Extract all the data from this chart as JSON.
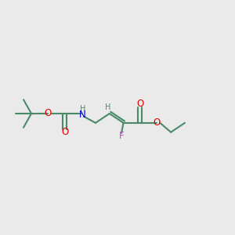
{
  "bg_color": "#eaeaea",
  "bond_color": "#4a8a6a",
  "bond_width": 1.5,
  "atom_colors": {
    "O": "#e00000",
    "N": "#0000dd",
    "F": "#cc44cc",
    "C": "#4a8a6a",
    "H": "#4a8a6a"
  },
  "font_size": 8.5,
  "fig_size": [
    3.0,
    3.0
  ],
  "dpi": 100,
  "xlim": [
    0,
    12
  ],
  "ylim": [
    0,
    12
  ]
}
